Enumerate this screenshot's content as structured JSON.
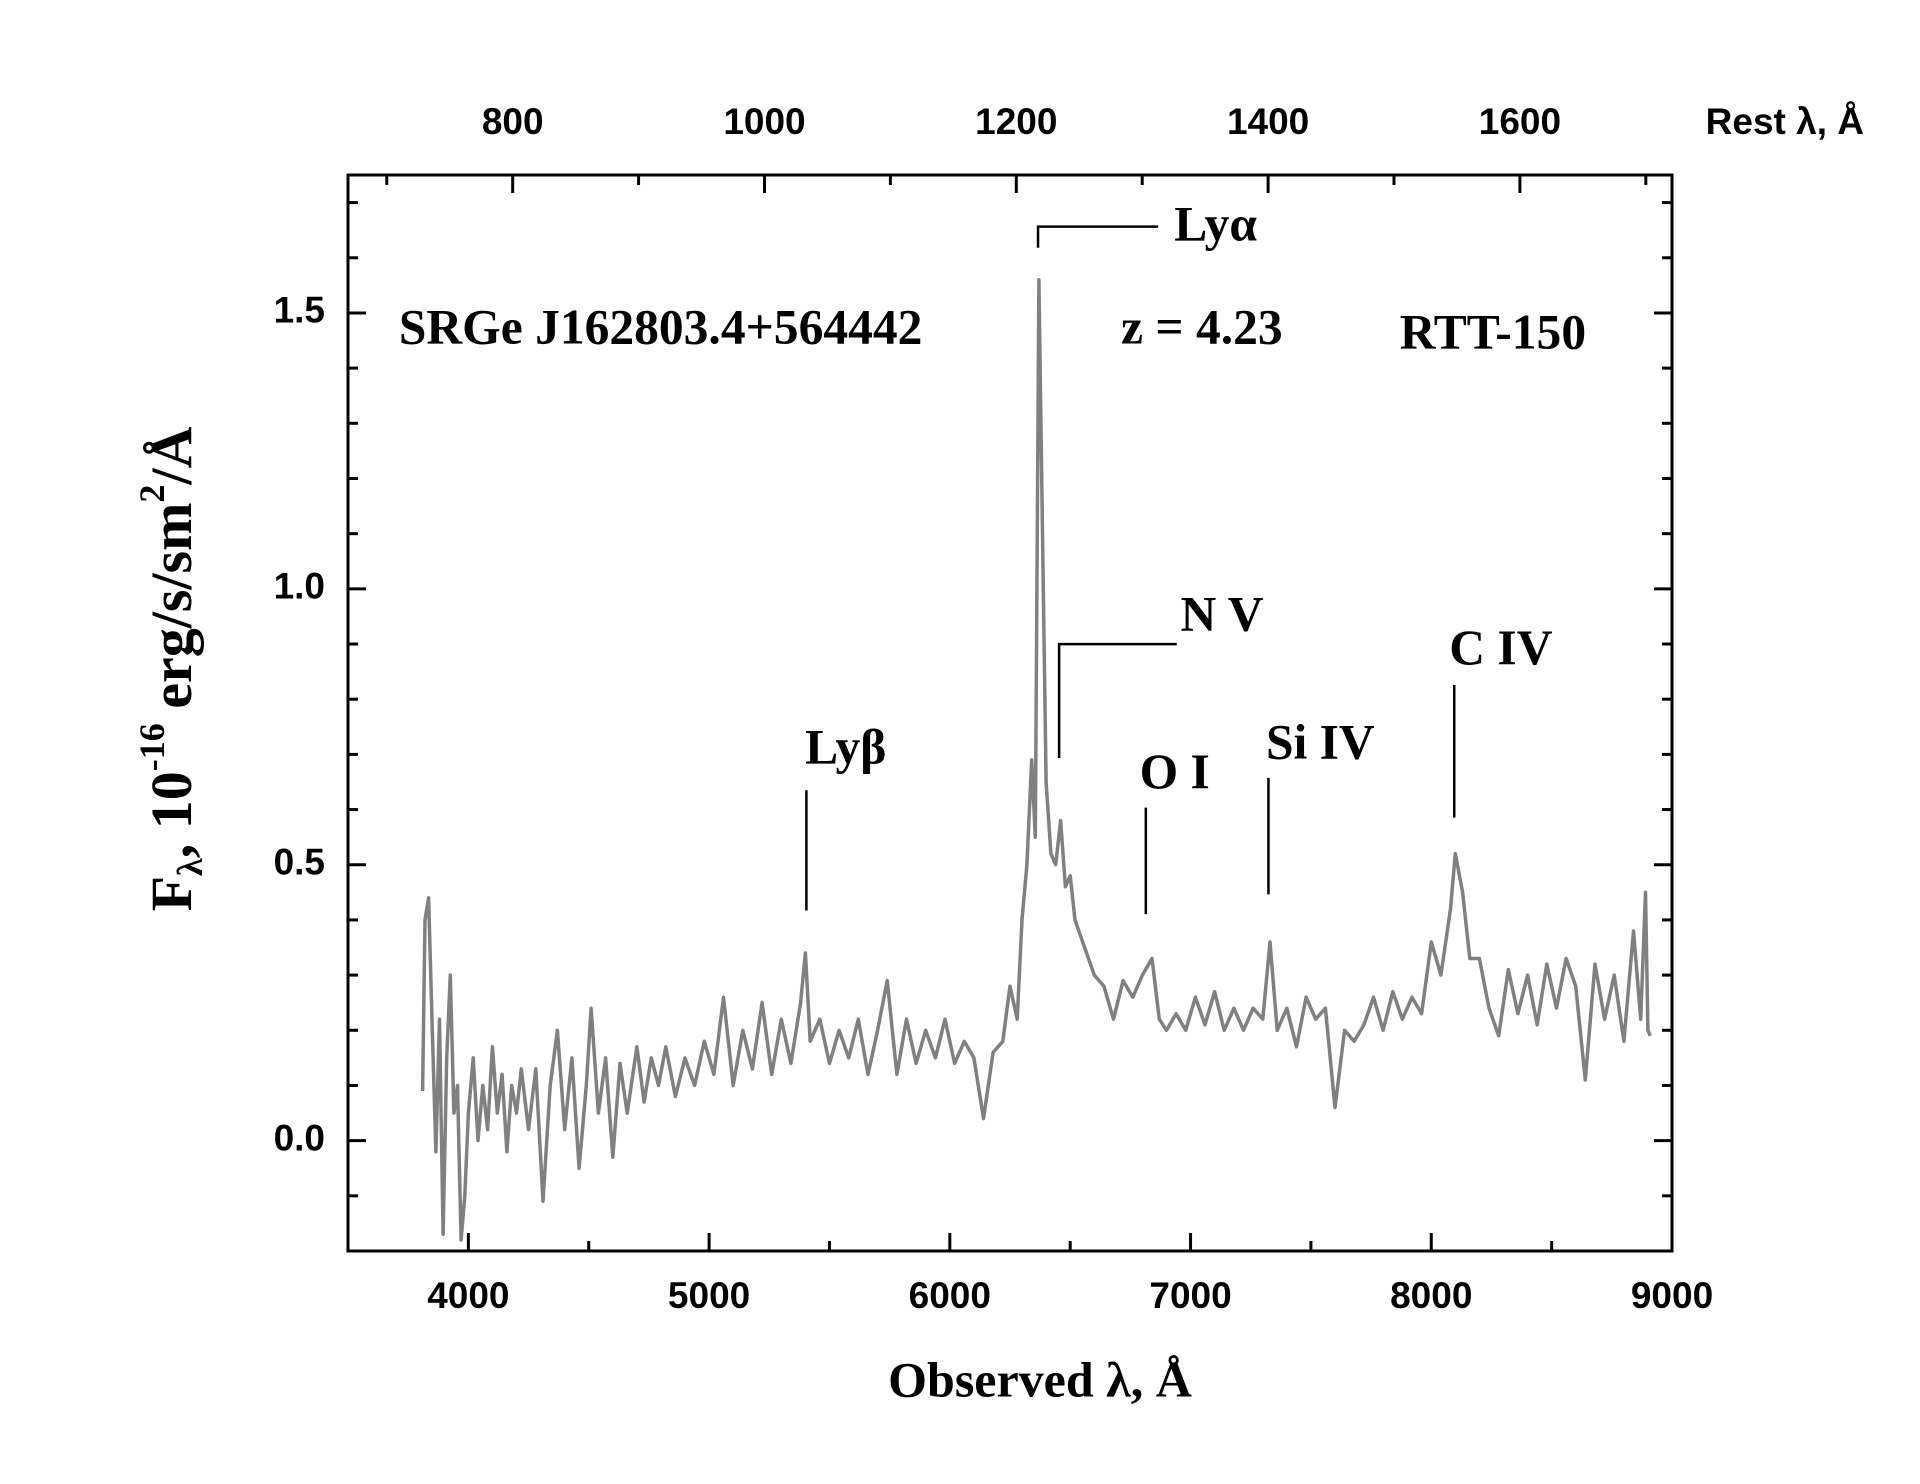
{
  "chart_data": {
    "type": "line",
    "xlabel": "Observed  λ, Å",
    "x2label": "Rest  λ, Å",
    "ylabel": [
      "F",
      "λ",
      ", 10",
      "-16",
      " erg/s/sm",
      "2",
      "/Å"
    ],
    "annotations": [
      "SRGe J162803.4+564442",
      "z = 4.23",
      "RTT-150",
      "Lyα",
      "N V",
      "Lyβ",
      "O I",
      "Si IV",
      "C IV"
    ],
    "color": "#808080",
    "grid": false,
    "xlim": [
      3500,
      9000
    ],
    "xticks": [
      4000,
      5000,
      6000,
      7000,
      8000,
      9000
    ],
    "xminor_ticks": [
      4500,
      5500,
      6500,
      7500,
      8500
    ],
    "x2lim": [
      669.2,
      1720.8
    ],
    "x2ticks": [
      800,
      1000,
      1200,
      1400,
      1600
    ],
    "x2minor_ticks": [
      700,
      900,
      1100,
      1300,
      1500,
      1700
    ],
    "ylim": [
      -0.2,
      1.75
    ],
    "yticks": [
      {
        "value": 0,
        "label": "0.0"
      },
      0.5,
      {
        "value": 1,
        "label": "1.0"
      },
      1.5
    ],
    "yminor_ticks": [
      -0.1,
      0.1,
      0.2,
      0.3,
      0.4,
      0.6,
      0.7,
      0.8,
      0.9,
      1.1,
      1.2,
      1.3,
      1.4,
      1.6,
      1.7
    ],
    "x": [
      3810,
      3820,
      3835,
      3850,
      3865,
      3880,
      3895,
      3910,
      3925,
      3940,
      3955,
      3970,
      3985,
      4000,
      4020,
      4040,
      4060,
      4080,
      4100,
      4120,
      4140,
      4160,
      4180,
      4200,
      4220,
      4250,
      4280,
      4310,
      4340,
      4370,
      4400,
      4430,
      4460,
      4490,
      4510,
      4540,
      4570,
      4600,
      4630,
      4660,
      4700,
      4730,
      4760,
      4790,
      4820,
      4860,
      4900,
      4940,
      4980,
      5020,
      5060,
      5100,
      5140,
      5180,
      5220,
      5260,
      5300,
      5340,
      5380,
      5400,
      5420,
      5460,
      5500,
      5540,
      5580,
      5620,
      5660,
      5700,
      5740,
      5780,
      5820,
      5860,
      5900,
      5940,
      5980,
      6020,
      6060,
      6100,
      6140,
      6180,
      6220,
      6250,
      6280,
      6300,
      6320,
      6340,
      6355,
      6370,
      6385,
      6400,
      6420,
      6440,
      6460,
      6480,
      6500,
      6520,
      6560,
      6600,
      6640,
      6680,
      6720,
      6760,
      6800,
      6840,
      6870,
      6900,
      6940,
      6980,
      7020,
      7060,
      7100,
      7140,
      7180,
      7220,
      7260,
      7300,
      7330,
      7360,
      7400,
      7440,
      7480,
      7520,
      7560,
      7600,
      7640,
      7680,
      7720,
      7760,
      7800,
      7840,
      7880,
      7920,
      7960,
      8000,
      8040,
      8080,
      8100,
      8130,
      8160,
      8200,
      8240,
      8280,
      8320,
      8360,
      8400,
      8440,
      8480,
      8520,
      8560,
      8600,
      8640,
      8680,
      8720,
      8760,
      8800,
      8840,
      8870,
      8890,
      8900,
      8910
    ],
    "values": [
      0.09,
      0.4,
      0.44,
      0.2,
      -0.02,
      0.22,
      -0.17,
      0.15,
      0.3,
      0.05,
      0.1,
      -0.18,
      -0.1,
      0.05,
      0.15,
      0.0,
      0.1,
      0.02,
      0.17,
      0.05,
      0.12,
      -0.02,
      0.1,
      0.05,
      0.13,
      0.02,
      0.13,
      -0.11,
      0.1,
      0.2,
      0.02,
      0.15,
      -0.05,
      0.1,
      0.24,
      0.05,
      0.15,
      -0.03,
      0.14,
      0.05,
      0.17,
      0.07,
      0.15,
      0.1,
      0.17,
      0.08,
      0.15,
      0.1,
      0.18,
      0.12,
      0.26,
      0.1,
      0.2,
      0.13,
      0.25,
      0.12,
      0.22,
      0.14,
      0.25,
      0.34,
      0.18,
      0.22,
      0.14,
      0.2,
      0.15,
      0.22,
      0.12,
      0.2,
      0.29,
      0.12,
      0.22,
      0.14,
      0.2,
      0.15,
      0.22,
      0.14,
      0.18,
      0.15,
      0.04,
      0.16,
      0.18,
      0.28,
      0.22,
      0.4,
      0.5,
      0.69,
      0.55,
      1.56,
      1.1,
      0.65,
      0.52,
      0.5,
      0.58,
      0.46,
      0.48,
      0.4,
      0.35,
      0.3,
      0.28,
      0.22,
      0.29,
      0.26,
      0.3,
      0.33,
      0.22,
      0.2,
      0.23,
      0.2,
      0.26,
      0.21,
      0.27,
      0.2,
      0.24,
      0.2,
      0.24,
      0.22,
      0.36,
      0.2,
      0.24,
      0.17,
      0.26,
      0.22,
      0.24,
      0.06,
      0.2,
      0.18,
      0.21,
      0.26,
      0.2,
      0.27,
      0.22,
      0.26,
      0.23,
      0.36,
      0.3,
      0.42,
      0.52,
      0.45,
      0.33,
      0.33,
      0.24,
      0.19,
      0.31,
      0.23,
      0.3,
      0.21,
      0.32,
      0.24,
      0.33,
      0.28,
      0.11,
      0.32,
      0.22,
      0.3,
      0.18,
      0.38,
      0.22,
      0.45,
      0.2,
      0.19
    ]
  }
}
